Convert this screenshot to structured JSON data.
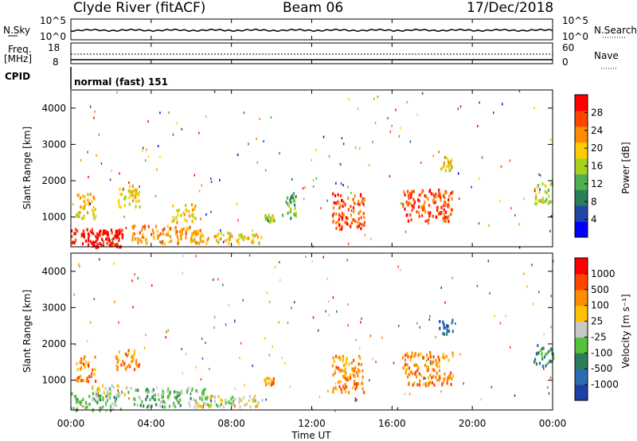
{
  "header": {
    "station": "Clyde River (fitACF)",
    "beam": "Beam 06",
    "date": "17/Dec/2018"
  },
  "panels": {
    "nsky": {
      "label": "N.Sky",
      "ticks": [
        "10^5",
        "10^0"
      ],
      "right_label": "N.Search",
      "right_ticks": [
        "10^5",
        "10^0"
      ]
    },
    "freq": {
      "label_line1": "Freq.",
      "label_line2": "[MHz]",
      "ticks": [
        "18",
        "8"
      ],
      "right_label": "Nave",
      "right_ticks": [
        "60",
        "0"
      ]
    },
    "cpid": {
      "label": "CPID",
      "mode_text": "normal (fast) 151"
    }
  },
  "chart_data": [
    {
      "type": "heatmap",
      "name": "power",
      "ylabel": "Slant Range [km]",
      "colorbar_label": "Power [dB]",
      "ylim": [
        180,
        4500
      ],
      "y_ticks": [
        "4000",
        "3000",
        "2000",
        "1000"
      ],
      "colorbar_ticks": [
        "28",
        "24",
        "20",
        "16",
        "12",
        "8",
        "4"
      ],
      "colors": [
        "#0000ff",
        "#1f48a6",
        "#2c7d5a",
        "#4caf50",
        "#a6d11f",
        "#ffcc00",
        "#ff8c00",
        "#ff4500",
        "#ff0000"
      ],
      "echo_regions_hours_km": [
        [
          0.0,
          2.5,
          200,
          700,
          8
        ],
        [
          0.2,
          1.2,
          1000,
          1700,
          5
        ],
        [
          1.0,
          2.6,
          200,
          700,
          8
        ],
        [
          2.2,
          3.4,
          1300,
          1900,
          5
        ],
        [
          3.0,
          6.5,
          300,
          800,
          6
        ],
        [
          5.0,
          6.2,
          900,
          1400,
          5
        ],
        [
          6.0,
          9.5,
          300,
          600,
          5
        ],
        [
          9.6,
          10.1,
          900,
          1100,
          4
        ],
        [
          10.5,
          11.2,
          1000,
          1700,
          3
        ],
        [
          13.0,
          14.6,
          700,
          1700,
          7
        ],
        [
          16.5,
          19.0,
          900,
          1800,
          7
        ],
        [
          18.3,
          19.0,
          2300,
          2700,
          5
        ],
        [
          23.0,
          24.0,
          1400,
          2000,
          4
        ]
      ]
    },
    {
      "type": "heatmap",
      "name": "velocity",
      "ylabel": "Slant Range [km]",
      "colorbar_label": "Velocity [m s⁻¹]",
      "ylim": [
        180,
        4500
      ],
      "y_ticks": [
        "4000",
        "3000",
        "2000",
        "1000"
      ],
      "colorbar_ticks": [
        "1000",
        "500",
        "100",
        "25",
        "-25",
        "-100",
        "-500",
        "-1000"
      ],
      "colors": [
        "#1f3fa6",
        "#2b6db3",
        "#2c7d5a",
        "#55c23a",
        "#c8c8c8",
        "#ffc200",
        "#ff8c00",
        "#ff4500",
        "#ff0000"
      ],
      "echo_regions_hours_km": [
        [
          0.0,
          2.5,
          200,
          700,
          3
        ],
        [
          0.2,
          1.2,
          1000,
          1700,
          6
        ],
        [
          1.0,
          3.0,
          600,
          900,
          4
        ],
        [
          2.2,
          3.4,
          1300,
          1900,
          6
        ],
        [
          3.0,
          7.0,
          300,
          800,
          3
        ],
        [
          6.0,
          9.5,
          300,
          600,
          4
        ],
        [
          9.6,
          10.1,
          900,
          1100,
          6
        ],
        [
          13.0,
          14.6,
          700,
          1700,
          6
        ],
        [
          16.5,
          19.0,
          900,
          1800,
          6
        ],
        [
          18.3,
          19.0,
          2300,
          2700,
          1
        ],
        [
          23.0,
          24.0,
          1400,
          2000,
          2
        ]
      ]
    }
  ],
  "xaxis": {
    "ticks": [
      "00:00",
      "04:00",
      "08:00",
      "12:00",
      "16:00",
      "20:00",
      "00:00"
    ],
    "label": "Time UT",
    "xlim_hours": [
      0,
      24
    ]
  }
}
